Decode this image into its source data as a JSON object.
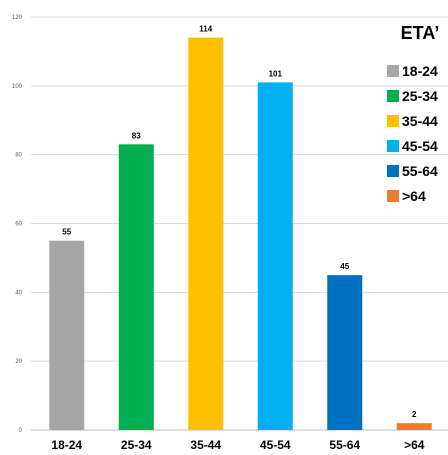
{
  "chart_data": {
    "type": "bar",
    "title": "",
    "xlabel": "",
    "ylabel": "",
    "ylim": [
      0,
      120
    ],
    "yticks": [
      0,
      20,
      40,
      60,
      80,
      100,
      120
    ],
    "grid": true,
    "legend_title": "ETA’",
    "legend_placement": "right",
    "categories": [
      "18-24",
      "25-34",
      "35-44",
      "45-54",
      "55-64",
      ">64"
    ],
    "values": [
      55,
      83,
      114,
      101,
      45,
      2
    ],
    "colors": [
      "#A5A5A5",
      "#00B050",
      "#FFC000",
      "#00B0F0",
      "#0070C0",
      "#ED7D31"
    ]
  }
}
